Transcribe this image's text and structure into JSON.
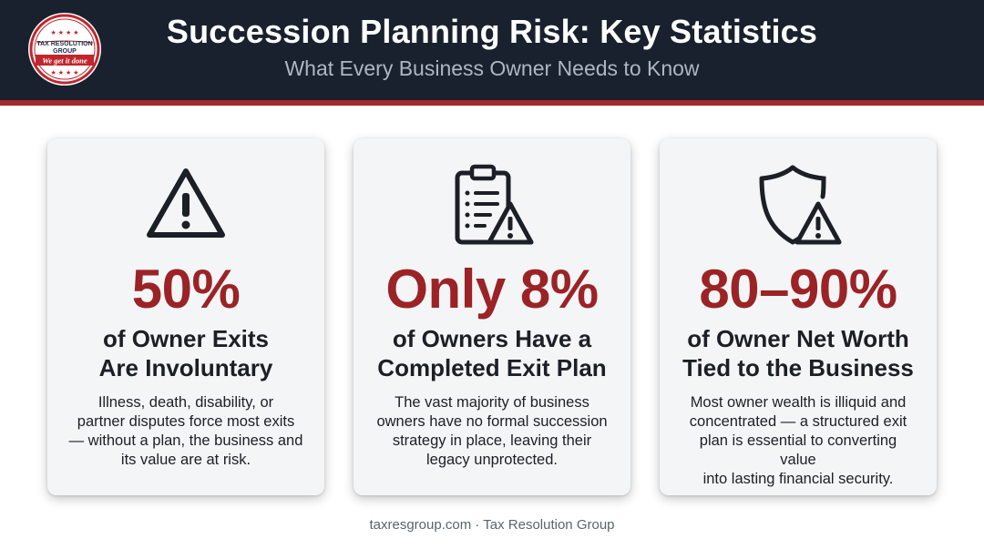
{
  "header": {
    "title": "Succession Planning Risk: Key Statistics",
    "subtitle": "What Every Business Owner Needs to Know",
    "logo": {
      "line1": "TAX RESOLUTION",
      "line2": "GROUP",
      "tagline": "We get it done"
    }
  },
  "cards": [
    {
      "icon": "warning-triangle-icon",
      "stat": "50%",
      "heading_line1": "of Owner Exits",
      "heading_line2": "Are Involuntary",
      "body_lines": [
        "Illness, death, disability, or",
        "partner disputes force most exits",
        "— without a plan, the business and",
        "its value are at risk."
      ]
    },
    {
      "icon": "clipboard-warning-icon",
      "stat": "Only 8%",
      "heading_line1": "of Owners Have a",
      "heading_line2": "Completed Exit Plan",
      "body_lines": [
        "The vast majority of business",
        "owners have no formal succession",
        "strategy in place, leaving their",
        "legacy unprotected."
      ]
    },
    {
      "icon": "shield-warning-icon",
      "stat": "80–90%",
      "heading_line1": "of Owner Net Worth",
      "heading_line2": "Tied to the Business",
      "body_lines": [
        "Most owner wealth is illiquid and",
        "concentrated — a structured exit",
        "plan is essential to converting value",
        "into lasting financial security."
      ]
    }
  ],
  "footer": "taxresgroup.com · Tax Resolution Group",
  "colors": {
    "header_bg": "#18212d",
    "accent_red": "#a32a2a",
    "stat_red": "#9b2326",
    "card_bg": "#f4f5f6"
  }
}
